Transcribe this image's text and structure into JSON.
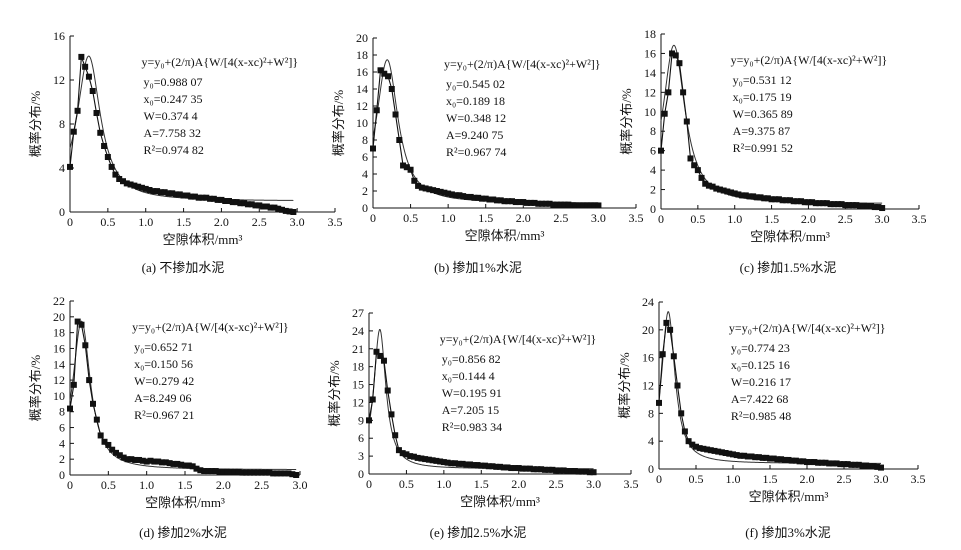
{
  "chart_data": [
    {
      "type": "scatter",
      "caption": "(a) 不掺加水泥",
      "xlabel": "空隙体积/mm³",
      "ylabel": "概率分布/%",
      "xlim": [
        0,
        3.5
      ],
      "ylim": [
        0,
        16
      ],
      "xticks": [
        "0",
        "0.5",
        "1.0",
        "1.5",
        "2.0",
        "2.5",
        "3.0",
        "3.5"
      ],
      "yticks": [
        "0",
        "4",
        "8",
        "12",
        "16"
      ],
      "grid": false,
      "equation": "y=y₀+(2/π)A{W/[4(x-xc)²+W²]}",
      "params": [
        "y₀=0.988 07",
        "x₀=0.247 35",
        "W=0.374 4",
        "A=7.758 32",
        "R²=0.974 82"
      ],
      "fit": {
        "y0": 0.98807,
        "xc": 0.24735,
        "W": 0.3744,
        "A": 7.75832
      },
      "series": [
        {
          "x": [
            0.0,
            0.05,
            0.1,
            0.15,
            0.2,
            0.25,
            0.3,
            0.35,
            0.4,
            0.45,
            0.5,
            0.55,
            0.6,
            0.65,
            0.7,
            0.75,
            0.8,
            0.85,
            0.9,
            0.95,
            1.0,
            1.05,
            1.1,
            1.15,
            1.2,
            1.25,
            1.3,
            1.35,
            1.4,
            1.45,
            1.5,
            1.55,
            1.6,
            1.65,
            1.7,
            1.75,
            1.8,
            1.85,
            1.9,
            1.95,
            2.0,
            2.05,
            2.1,
            2.15,
            2.2,
            2.25,
            2.3,
            2.35,
            2.4,
            2.45,
            2.5,
            2.55,
            2.6,
            2.65,
            2.7,
            2.75,
            2.8,
            2.85,
            2.9,
            2.95
          ],
          "y": [
            4.1,
            7.3,
            9.2,
            14.1,
            13.2,
            12.3,
            11.0,
            9.0,
            7.2,
            6.0,
            5.0,
            4.1,
            3.4,
            3.0,
            2.8,
            2.6,
            2.5,
            2.4,
            2.3,
            2.2,
            2.1,
            2.0,
            1.9,
            1.9,
            1.8,
            1.8,
            1.7,
            1.7,
            1.6,
            1.6,
            1.5,
            1.5,
            1.4,
            1.4,
            1.3,
            1.3,
            1.3,
            1.2,
            1.2,
            1.1,
            1.1,
            1.0,
            1.0,
            0.9,
            0.9,
            0.8,
            0.8,
            0.7,
            0.7,
            0.6,
            0.6,
            0.5,
            0.5,
            0.4,
            0.4,
            0.3,
            0.2,
            0.1,
            0.05,
            0.0
          ]
        }
      ]
    },
    {
      "type": "scatter",
      "caption": "(b) 掺加1%水泥",
      "xlabel": "空隙体积/mm³",
      "ylabel": "概率分布/%",
      "xlim": [
        0,
        3.5
      ],
      "ylim": [
        0,
        20
      ],
      "xticks": [
        "0",
        "0.5",
        "1.0",
        "1.5",
        "2.0",
        "2.5",
        "3.0",
        "3.5"
      ],
      "yticks": [
        "0",
        "2",
        "4",
        "6",
        "8",
        "10",
        "12",
        "14",
        "16",
        "18",
        "20"
      ],
      "grid": false,
      "equation": "y=y₀+(2/π)A{W/[4(x-xc)²+W²]}",
      "params": [
        "y₀=0.545 02",
        "x₀=0.189 18",
        "W=0.348 12",
        "A=9.240 75",
        "R²=0.967 74"
      ],
      "fit": {
        "y0": 0.54502,
        "xc": 0.18918,
        "W": 0.34812,
        "A": 9.24075
      },
      "series": [
        {
          "x": [
            0.0,
            0.05,
            0.1,
            0.15,
            0.2,
            0.25,
            0.3,
            0.35,
            0.4,
            0.45,
            0.5,
            0.55,
            0.6,
            0.65,
            0.7,
            0.75,
            0.8,
            0.85,
            0.9,
            0.95,
            1.0,
            1.05,
            1.1,
            1.15,
            1.2,
            1.25,
            1.3,
            1.35,
            1.4,
            1.45,
            1.5,
            1.55,
            1.6,
            1.65,
            1.7,
            1.75,
            1.8,
            1.85,
            1.9,
            1.95,
            2.0,
            2.05,
            2.1,
            2.15,
            2.2,
            2.25,
            2.3,
            2.35,
            2.4,
            2.45,
            2.5,
            2.55,
            2.6,
            2.65,
            2.7,
            2.75,
            2.8,
            2.85,
            2.9,
            2.95,
            3.0
          ],
          "y": [
            7.0,
            11.5,
            16.2,
            15.8,
            15.5,
            14.0,
            11.0,
            8.0,
            5.0,
            4.8,
            4.5,
            3.2,
            2.6,
            2.4,
            2.3,
            2.2,
            2.1,
            2.0,
            1.9,
            1.8,
            1.7,
            1.6,
            1.5,
            1.5,
            1.4,
            1.3,
            1.3,
            1.2,
            1.2,
            1.1,
            1.1,
            1.0,
            1.0,
            0.9,
            0.9,
            0.8,
            0.8,
            0.8,
            0.7,
            0.7,
            0.7,
            0.6,
            0.6,
            0.6,
            0.5,
            0.5,
            0.5,
            0.5,
            0.4,
            0.4,
            0.4,
            0.4,
            0.4,
            0.3,
            0.3,
            0.3,
            0.3,
            0.3,
            0.3,
            0.3,
            0.3
          ]
        }
      ]
    },
    {
      "type": "scatter",
      "caption": "(c) 掺加1.5%水泥",
      "xlabel": "空隙体积/mm³",
      "ylabel": "概率分布/%",
      "xlim": [
        0,
        3.5
      ],
      "ylim": [
        0,
        18
      ],
      "xticks": [
        "0",
        "0.5",
        "1.0",
        "1.5",
        "2.0",
        "2.5",
        "3.0",
        "3.5"
      ],
      "yticks": [
        "0",
        "2",
        "4",
        "6",
        "8",
        "10",
        "12",
        "14",
        "16",
        "18"
      ],
      "grid": false,
      "equation": "y=y₀+(2/π)A{W/[4(x-xc)²+W²]}",
      "params": [
        "y₀=0.531 12",
        "x₀=0.175 19",
        "W=0.365 89",
        "A=9.375 87",
        "R²=0.991 52"
      ],
      "fit": {
        "y0": 0.53112,
        "xc": 0.17519,
        "W": 0.36589,
        "A": 9.37587
      },
      "series": [
        {
          "x": [
            0.0,
            0.05,
            0.1,
            0.15,
            0.2,
            0.25,
            0.3,
            0.35,
            0.4,
            0.45,
            0.5,
            0.55,
            0.6,
            0.65,
            0.7,
            0.75,
            0.8,
            0.85,
            0.9,
            0.95,
            1.0,
            1.05,
            1.1,
            1.15,
            1.2,
            1.25,
            1.3,
            1.35,
            1.4,
            1.45,
            1.5,
            1.55,
            1.6,
            1.65,
            1.7,
            1.75,
            1.8,
            1.85,
            1.9,
            1.95,
            2.0,
            2.05,
            2.1,
            2.15,
            2.2,
            2.25,
            2.3,
            2.35,
            2.4,
            2.45,
            2.5,
            2.55,
            2.6,
            2.65,
            2.7,
            2.75,
            2.8,
            2.85,
            2.9,
            2.95,
            3.0
          ],
          "y": [
            6.0,
            9.8,
            12.0,
            16.0,
            15.8,
            15.0,
            12.0,
            9.0,
            5.2,
            4.5,
            4.0,
            3.2,
            2.6,
            2.4,
            2.3,
            2.1,
            2.0,
            1.9,
            1.8,
            1.7,
            1.6,
            1.5,
            1.4,
            1.4,
            1.3,
            1.3,
            1.2,
            1.2,
            1.1,
            1.1,
            1.0,
            1.0,
            1.0,
            0.9,
            0.9,
            0.9,
            0.8,
            0.8,
            0.8,
            0.7,
            0.7,
            0.7,
            0.6,
            0.6,
            0.6,
            0.6,
            0.5,
            0.5,
            0.5,
            0.5,
            0.4,
            0.4,
            0.4,
            0.4,
            0.3,
            0.3,
            0.3,
            0.3,
            0.2,
            0.2,
            0.1
          ]
        }
      ]
    },
    {
      "type": "scatter",
      "caption": "(d) 掺加2%水泥",
      "xlabel": "空隙体积/mm³",
      "ylabel": "概率分布/%",
      "xlim": [
        0,
        3.0
      ],
      "ylim": [
        0,
        22
      ],
      "xticks": [
        "0",
        "0.5",
        "1.0",
        "1.5",
        "2.0",
        "2.5",
        "3.0"
      ],
      "yticks": [
        "0",
        "2",
        "4",
        "6",
        "8",
        "10",
        "12",
        "14",
        "16",
        "18",
        "20",
        "22"
      ],
      "grid": false,
      "equation": "y=y₀+(2/π)A{W/[4(x-xc)²+W²]}",
      "params": [
        "y₀=0.652 71",
        "x₀=0.150 56",
        "W=0.279 42",
        "A=8.249 06",
        "R²=0.967 21"
      ],
      "fit": {
        "y0": 0.65271,
        "xc": 0.15056,
        "W": 0.27942,
        "A": 8.24906
      },
      "series": [
        {
          "x": [
            0.0,
            0.05,
            0.1,
            0.15,
            0.2,
            0.25,
            0.3,
            0.35,
            0.4,
            0.45,
            0.5,
            0.55,
            0.6,
            0.65,
            0.7,
            0.75,
            0.8,
            0.85,
            0.9,
            0.95,
            1.0,
            1.05,
            1.1,
            1.15,
            1.2,
            1.25,
            1.3,
            1.35,
            1.4,
            1.45,
            1.5,
            1.55,
            1.6,
            1.65,
            1.7,
            1.75,
            1.8,
            1.85,
            1.9,
            1.95,
            2.0,
            2.05,
            2.1,
            2.15,
            2.2,
            2.25,
            2.3,
            2.35,
            2.4,
            2.45,
            2.5,
            2.55,
            2.6,
            2.65,
            2.7,
            2.75,
            2.8,
            2.85,
            2.9,
            2.95
          ],
          "y": [
            8.4,
            11.4,
            19.4,
            19.0,
            16.4,
            12.0,
            9.0,
            7.0,
            5.0,
            4.2,
            3.8,
            3.2,
            2.8,
            2.5,
            2.2,
            2.0,
            2.0,
            1.9,
            1.9,
            1.8,
            1.7,
            1.8,
            1.7,
            1.7,
            1.6,
            1.6,
            1.5,
            1.4,
            1.4,
            1.3,
            1.2,
            1.2,
            1.1,
            0.8,
            0.6,
            0.5,
            0.5,
            0.5,
            0.5,
            0.4,
            0.4,
            0.4,
            0.4,
            0.4,
            0.4,
            0.3,
            0.3,
            0.3,
            0.3,
            0.3,
            0.3,
            0.3,
            0.3,
            0.2,
            0.2,
            0.2,
            0.2,
            0.2,
            0.1,
            0.0
          ]
        }
      ]
    },
    {
      "type": "scatter",
      "caption": "(e) 掺加2.5%水泥",
      "xlabel": "空隙体积/mm³",
      "ylabel": "概率分布/%",
      "xlim": [
        0,
        3.5
      ],
      "ylim": [
        0,
        27
      ],
      "xticks": [
        "0",
        "0.5",
        "1.0",
        "1.5",
        "2.0",
        "2.5",
        "3.0",
        "3.5"
      ],
      "yticks": [
        "0",
        "3",
        "6",
        "9",
        "12",
        "15",
        "18",
        "21",
        "24",
        "27"
      ],
      "grid": false,
      "equation": "y=y₀+(2/π)A{W/[4(x-xc)²+W²]}",
      "params": [
        "y₀=0.856 82",
        "x₀=0.144 4",
        "W=0.195 91",
        "A=7.205 15",
        "R²=0.983 34"
      ],
      "fit": {
        "y0": 0.85682,
        "xc": 0.1444,
        "W": 0.19591,
        "A": 7.20515
      },
      "series": [
        {
          "x": [
            0.0,
            0.05,
            0.1,
            0.15,
            0.2,
            0.25,
            0.3,
            0.35,
            0.4,
            0.45,
            0.5,
            0.55,
            0.6,
            0.65,
            0.7,
            0.75,
            0.8,
            0.85,
            0.9,
            0.95,
            1.0,
            1.05,
            1.1,
            1.15,
            1.2,
            1.25,
            1.3,
            1.35,
            1.4,
            1.45,
            1.5,
            1.55,
            1.6,
            1.65,
            1.7,
            1.75,
            1.8,
            1.85,
            1.9,
            1.95,
            2.0,
            2.05,
            2.1,
            2.15,
            2.2,
            2.25,
            2.3,
            2.35,
            2.4,
            2.45,
            2.5,
            2.55,
            2.6,
            2.65,
            2.7,
            2.75,
            2.8,
            2.85,
            2.9,
            2.95,
            3.0
          ],
          "y": [
            9.0,
            12.5,
            20.5,
            19.8,
            19.0,
            14.0,
            10.0,
            6.5,
            4.0,
            3.5,
            3.3,
            3.0,
            2.9,
            2.7,
            2.6,
            2.5,
            2.4,
            2.3,
            2.2,
            2.1,
            2.0,
            1.9,
            1.8,
            1.8,
            1.7,
            1.7,
            1.6,
            1.6,
            1.5,
            1.5,
            1.4,
            1.4,
            1.3,
            1.3,
            1.2,
            1.2,
            1.1,
            1.1,
            1.0,
            1.0,
            1.0,
            0.9,
            0.9,
            0.9,
            0.8,
            0.8,
            0.8,
            0.7,
            0.7,
            0.7,
            0.6,
            0.6,
            0.6,
            0.5,
            0.5,
            0.5,
            0.4,
            0.4,
            0.4,
            0.3,
            0.3
          ]
        }
      ]
    },
    {
      "type": "scatter",
      "caption": "(f) 掺加3%水泥",
      "xlabel": "空隙体积/mm³",
      "ylabel": "概率分布/%",
      "xlim": [
        0,
        3.5
      ],
      "ylim": [
        0,
        24
      ],
      "xticks": [
        "0",
        "0.5",
        "1.0",
        "1.5",
        "2.0",
        "2.5",
        "3.0",
        "3.5"
      ],
      "yticks": [
        "0",
        "4",
        "8",
        "12",
        "16",
        "20",
        "24"
      ],
      "grid": false,
      "equation": "y=y₀+(2/π)A{W/[4(x-xc)²+W²]}",
      "params": [
        "y₀=0.774 23",
        "x₀=0.125 16",
        "W=0.216 17",
        "A=7.422 68",
        "R²=0.985 48"
      ],
      "fit": {
        "y0": 0.77423,
        "xc": 0.12516,
        "W": 0.21617,
        "A": 7.42268
      },
      "series": [
        {
          "x": [
            0.0,
            0.05,
            0.1,
            0.15,
            0.2,
            0.25,
            0.3,
            0.35,
            0.4,
            0.45,
            0.5,
            0.55,
            0.6,
            0.65,
            0.7,
            0.75,
            0.8,
            0.85,
            0.9,
            0.95,
            1.0,
            1.05,
            1.1,
            1.15,
            1.2,
            1.25,
            1.3,
            1.35,
            1.4,
            1.45,
            1.5,
            1.55,
            1.6,
            1.65,
            1.7,
            1.75,
            1.8,
            1.85,
            1.9,
            1.95,
            2.0,
            2.05,
            2.1,
            2.15,
            2.2,
            2.25,
            2.3,
            2.35,
            2.4,
            2.45,
            2.5,
            2.55,
            2.6,
            2.65,
            2.7,
            2.75,
            2.8,
            2.85,
            2.9,
            2.95,
            3.0
          ],
          "y": [
            9.5,
            16.5,
            21.0,
            20.0,
            16.2,
            12.0,
            8.0,
            5.4,
            4.0,
            3.5,
            3.2,
            3.0,
            2.9,
            2.8,
            2.7,
            2.6,
            2.5,
            2.4,
            2.3,
            2.2,
            2.1,
            2.0,
            1.9,
            1.9,
            1.8,
            1.8,
            1.7,
            1.7,
            1.6,
            1.6,
            1.5,
            1.5,
            1.4,
            1.4,
            1.3,
            1.3,
            1.2,
            1.2,
            1.1,
            1.1,
            1.0,
            1.0,
            1.0,
            0.9,
            0.9,
            0.9,
            0.8,
            0.8,
            0.8,
            0.7,
            0.7,
            0.7,
            0.6,
            0.6,
            0.6,
            0.5,
            0.5,
            0.4,
            0.4,
            0.3,
            0.2
          ]
        }
      ]
    }
  ]
}
